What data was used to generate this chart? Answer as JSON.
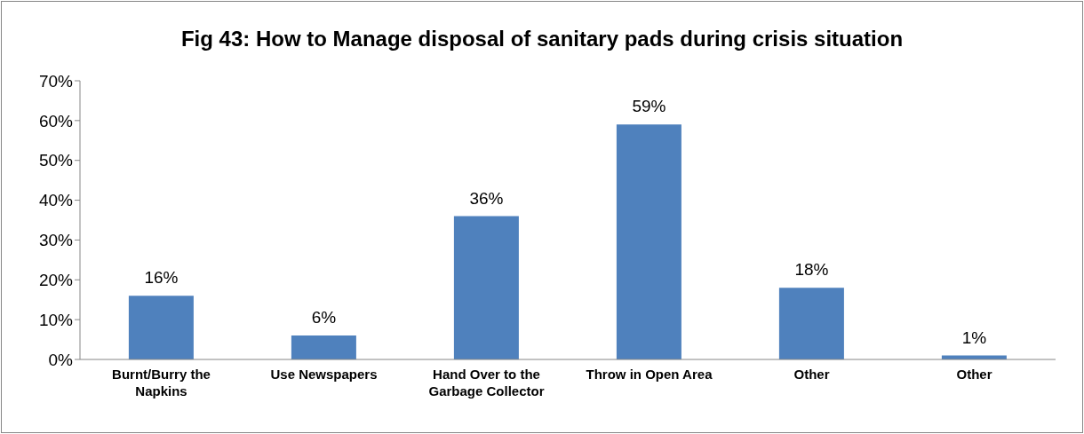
{
  "chart_data": {
    "type": "bar",
    "title": "Fig 43: How to Manage disposal of sanitary pads during crisis situation",
    "categories": [
      "Burnt/Burry the Napkins",
      "Use Newspapers",
      "Hand Over to the Garbage Collector",
      "Throw in Open Area",
      "Other",
      "Other"
    ],
    "values": [
      16,
      6,
      36,
      59,
      18,
      1
    ],
    "value_labels": [
      "16%",
      "6%",
      "36%",
      "59%",
      "18%",
      "1%"
    ],
    "color": "#4f81bd",
    "ylim": [
      0,
      70
    ],
    "yticks": [
      {
        "value": 0,
        "label": "0%"
      },
      {
        "value": 10,
        "label": "10%"
      },
      {
        "value": 20,
        "label": "20%"
      },
      {
        "value": 30,
        "label": "30%"
      },
      {
        "value": 40,
        "label": "40%"
      },
      {
        "value": 50,
        "label": "50%"
      },
      {
        "value": 60,
        "label": "60%"
      },
      {
        "value": 70,
        "label": "70%"
      }
    ],
    "grid": false,
    "legend": false
  }
}
